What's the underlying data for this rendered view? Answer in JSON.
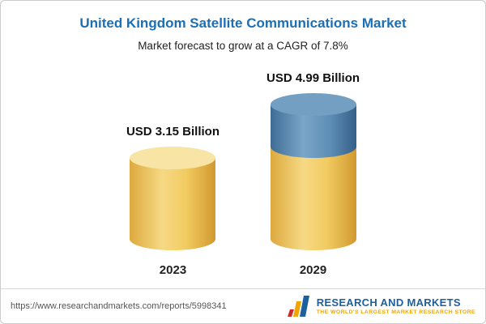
{
  "chart_data": {
    "type": "bar",
    "title": "United Kingdom Satellite Communications Market",
    "subtitle": "Market forecast to grow at a CAGR of 7.8%",
    "categories": [
      "2023",
      "2029"
    ],
    "values": [
      3.15,
      4.99
    ],
    "value_labels": [
      "USD 3.15 Billion",
      "USD 4.99 Billion"
    ],
    "unit": "USD Billion",
    "cagr_percent": 7.8,
    "ylim": [
      0,
      5
    ],
    "grid": false,
    "legend_position": "none",
    "bar_style": "3d-cylinder",
    "colors": {
      "base_segment": "#f2cc62",
      "growth_segment": "#5c8db4",
      "title_text": "#1b6fb5"
    }
  },
  "footer": {
    "url": "https://www.researchandmarkets.com/reports/5998341",
    "logo": {
      "brand": "RESEARCH AND MARKETS",
      "tagline": "THE WORLD'S LARGEST MARKET RESEARCH STORE",
      "brand_color": "#1e5f9e",
      "tagline_color": "#f0a500"
    }
  }
}
